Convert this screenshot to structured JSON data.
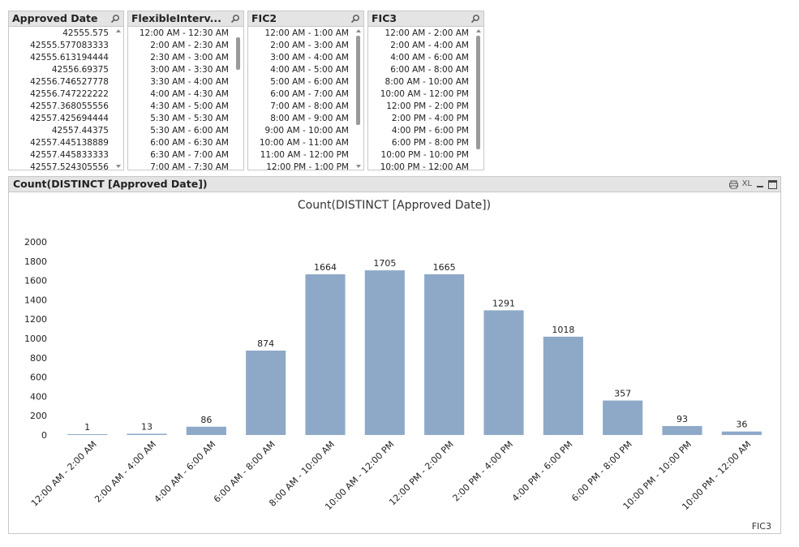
{
  "listboxes": [
    {
      "title": "Approved Date",
      "items": [
        "42555.575",
        "42555.577083333",
        "42555.613194444",
        "42556.69375",
        "42556.746527778",
        "42556.747222222",
        "42557.368055556",
        "42557.425694444",
        "42557.44375",
        "42557.445138889",
        "42557.445833333",
        "42557.524305556"
      ]
    },
    {
      "title": "FlexibleInterv...",
      "items": [
        "12:00 AM - 12:30 AM",
        "2:00 AM - 2:30 AM",
        "2:30 AM - 3:00 AM",
        "3:00 AM - 3:30 AM",
        "3:30 AM - 4:00 AM",
        "4:00 AM - 4:30 AM",
        "4:30 AM - 5:00 AM",
        "5:30 AM - 5:30 AM",
        "5:30 AM - 6:00 AM",
        "6:00 AM - 6:30 AM",
        "6:30 AM - 7:00 AM",
        "7:00 AM - 7:30 AM"
      ]
    },
    {
      "title": "FIC2",
      "items": [
        "12:00 AM - 1:00 AM",
        "2:00 AM - 3:00 AM",
        "3:00 AM - 4:00 AM",
        "4:00 AM - 5:00 AM",
        "5:00 AM - 6:00 AM",
        "6:00 AM - 7:00 AM",
        "7:00 AM - 8:00 AM",
        "8:00 AM - 9:00 AM",
        "9:00 AM - 10:00 AM",
        "10:00 AM - 11:00 AM",
        "11:00 AM - 12:00 PM",
        "12:00 PM - 1:00 PM"
      ]
    },
    {
      "title": "FIC3",
      "items": [
        "12:00 AM - 2:00 AM",
        "2:00 AM - 4:00 AM",
        "4:00 AM - 6:00 AM",
        "6:00 AM - 8:00 AM",
        "8:00 AM - 10:00 AM",
        "10:00 AM - 12:00 PM",
        "12:00 PM - 2:00 PM",
        "2:00 PM - 4:00 PM",
        "4:00 PM - 6:00 PM",
        "6:00 PM - 8:00 PM",
        "10:00 PM - 10:00 PM",
        "10:00 PM - 12:00 AM"
      ]
    }
  ],
  "chart_box": {
    "caption": "Count(DISTINCT [Approved Date])",
    "xl_label": "XL",
    "dimension_label": "FIC3"
  },
  "colors": {
    "bar": "#8ea9c8",
    "caption_bg": "#e4e4e4",
    "border": "#c8c8c8"
  },
  "chart_data": {
    "type": "bar",
    "title": "Count(DISTINCT [Approved Date])",
    "categories": [
      "12:00 AM - 2:00 AM",
      "2:00 AM - 4:00 AM",
      "4:00 AM - 6:00 AM",
      "6:00 AM - 8:00 AM",
      "8:00 AM - 10:00 AM",
      "10:00 AM - 12:00 PM",
      "12:00 PM - 2:00 PM",
      "2:00 PM - 4:00 PM",
      "4:00 PM - 6:00 PM",
      "6:00 PM - 8:00 PM",
      "10:00 PM - 10:00 PM",
      "10:00 PM - 12:00 AM"
    ],
    "values": [
      1,
      13,
      86,
      874,
      1664,
      1705,
      1665,
      1291,
      1018,
      357,
      93,
      36
    ],
    "ylim": [
      0,
      2000
    ],
    "yticks": [
      0,
      200,
      400,
      600,
      800,
      1000,
      1200,
      1400,
      1600,
      1800,
      2000
    ],
    "grid": false,
    "data_labels": true
  }
}
